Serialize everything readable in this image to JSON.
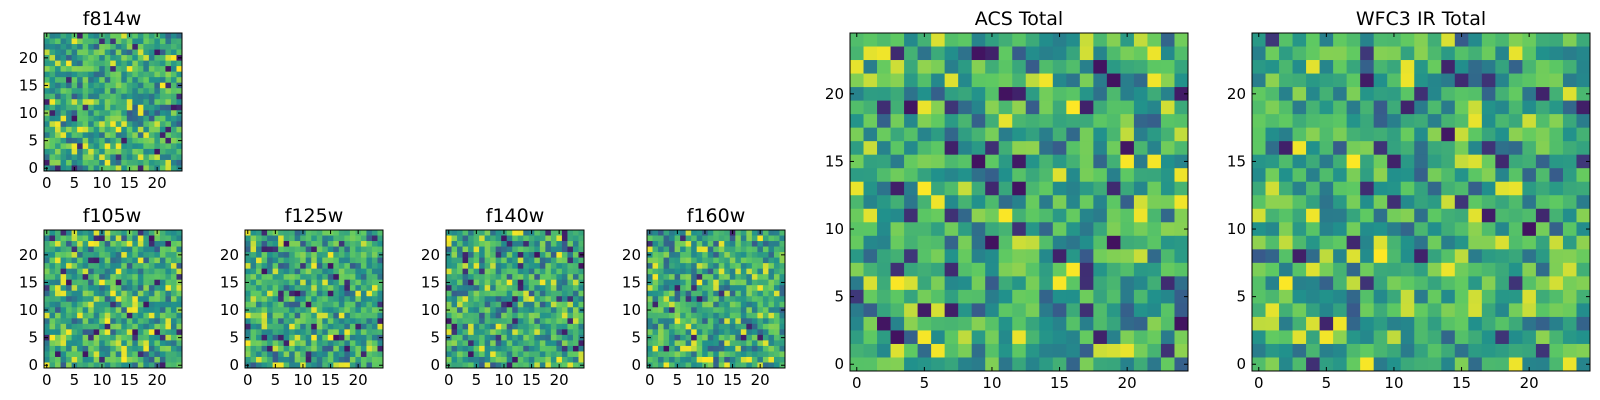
{
  "chart_data": [
    {
      "type": "heatmap",
      "title": "f814w",
      "xticks": [
        "0",
        "5",
        "10",
        "15",
        "20"
      ],
      "yticks": [
        "0",
        "5",
        "10",
        "15",
        "20"
      ],
      "xlim": [
        -0.5,
        24.5
      ],
      "ylim": [
        -0.5,
        24.5
      ],
      "grid_size": 25,
      "seed": 11
    },
    {
      "type": "heatmap",
      "title": "f105w",
      "xticks": [
        "0",
        "5",
        "10",
        "15",
        "20"
      ],
      "yticks": [
        "0",
        "5",
        "10",
        "15",
        "20"
      ],
      "xlim": [
        -0.5,
        24.5
      ],
      "ylim": [
        -0.5,
        24.5
      ],
      "grid_size": 25,
      "seed": 23
    },
    {
      "type": "heatmap",
      "title": "f125w",
      "xticks": [
        "0",
        "5",
        "10",
        "15",
        "20"
      ],
      "yticks": [
        "0",
        "5",
        "10",
        "15",
        "20"
      ],
      "xlim": [
        -0.5,
        24.5
      ],
      "ylim": [
        -0.5,
        24.5
      ],
      "grid_size": 25,
      "seed": 37
    },
    {
      "type": "heatmap",
      "title": "f140w",
      "xticks": [
        "0",
        "5",
        "10",
        "15",
        "20"
      ],
      "yticks": [
        "0",
        "5",
        "10",
        "15",
        "20"
      ],
      "xlim": [
        -0.5,
        24.5
      ],
      "ylim": [
        -0.5,
        24.5
      ],
      "grid_size": 25,
      "seed": 41
    },
    {
      "type": "heatmap",
      "title": "f160w",
      "xticks": [
        "0",
        "5",
        "10",
        "15",
        "20"
      ],
      "yticks": [
        "0",
        "5",
        "10",
        "15",
        "20"
      ],
      "xlim": [
        -0.5,
        24.5
      ],
      "ylim": [
        -0.5,
        24.5
      ],
      "grid_size": 25,
      "seed": 53
    },
    {
      "type": "heatmap",
      "title": "ACS Total",
      "xticks": [
        "0",
        "5",
        "10",
        "15",
        "20"
      ],
      "yticks": [
        "0",
        "5",
        "10",
        "15",
        "20"
      ],
      "xlim": [
        -0.5,
        24.5
      ],
      "ylim": [
        -0.5,
        24.5
      ],
      "grid_size": 25,
      "seed": 67
    },
    {
      "type": "heatmap",
      "title": "WFC3 IR Total",
      "xticks": [
        "0",
        "5",
        "10",
        "15",
        "20"
      ],
      "yticks": [
        "0",
        "5",
        "10",
        "15",
        "20"
      ],
      "xlim": [
        -0.5,
        24.5
      ],
      "ylim": [
        -0.5,
        24.5
      ],
      "grid_size": 25,
      "seed": 79
    }
  ],
  "colormap": [
    "#440154",
    "#3b528b",
    "#21918c",
    "#5ec962",
    "#fde725"
  ]
}
